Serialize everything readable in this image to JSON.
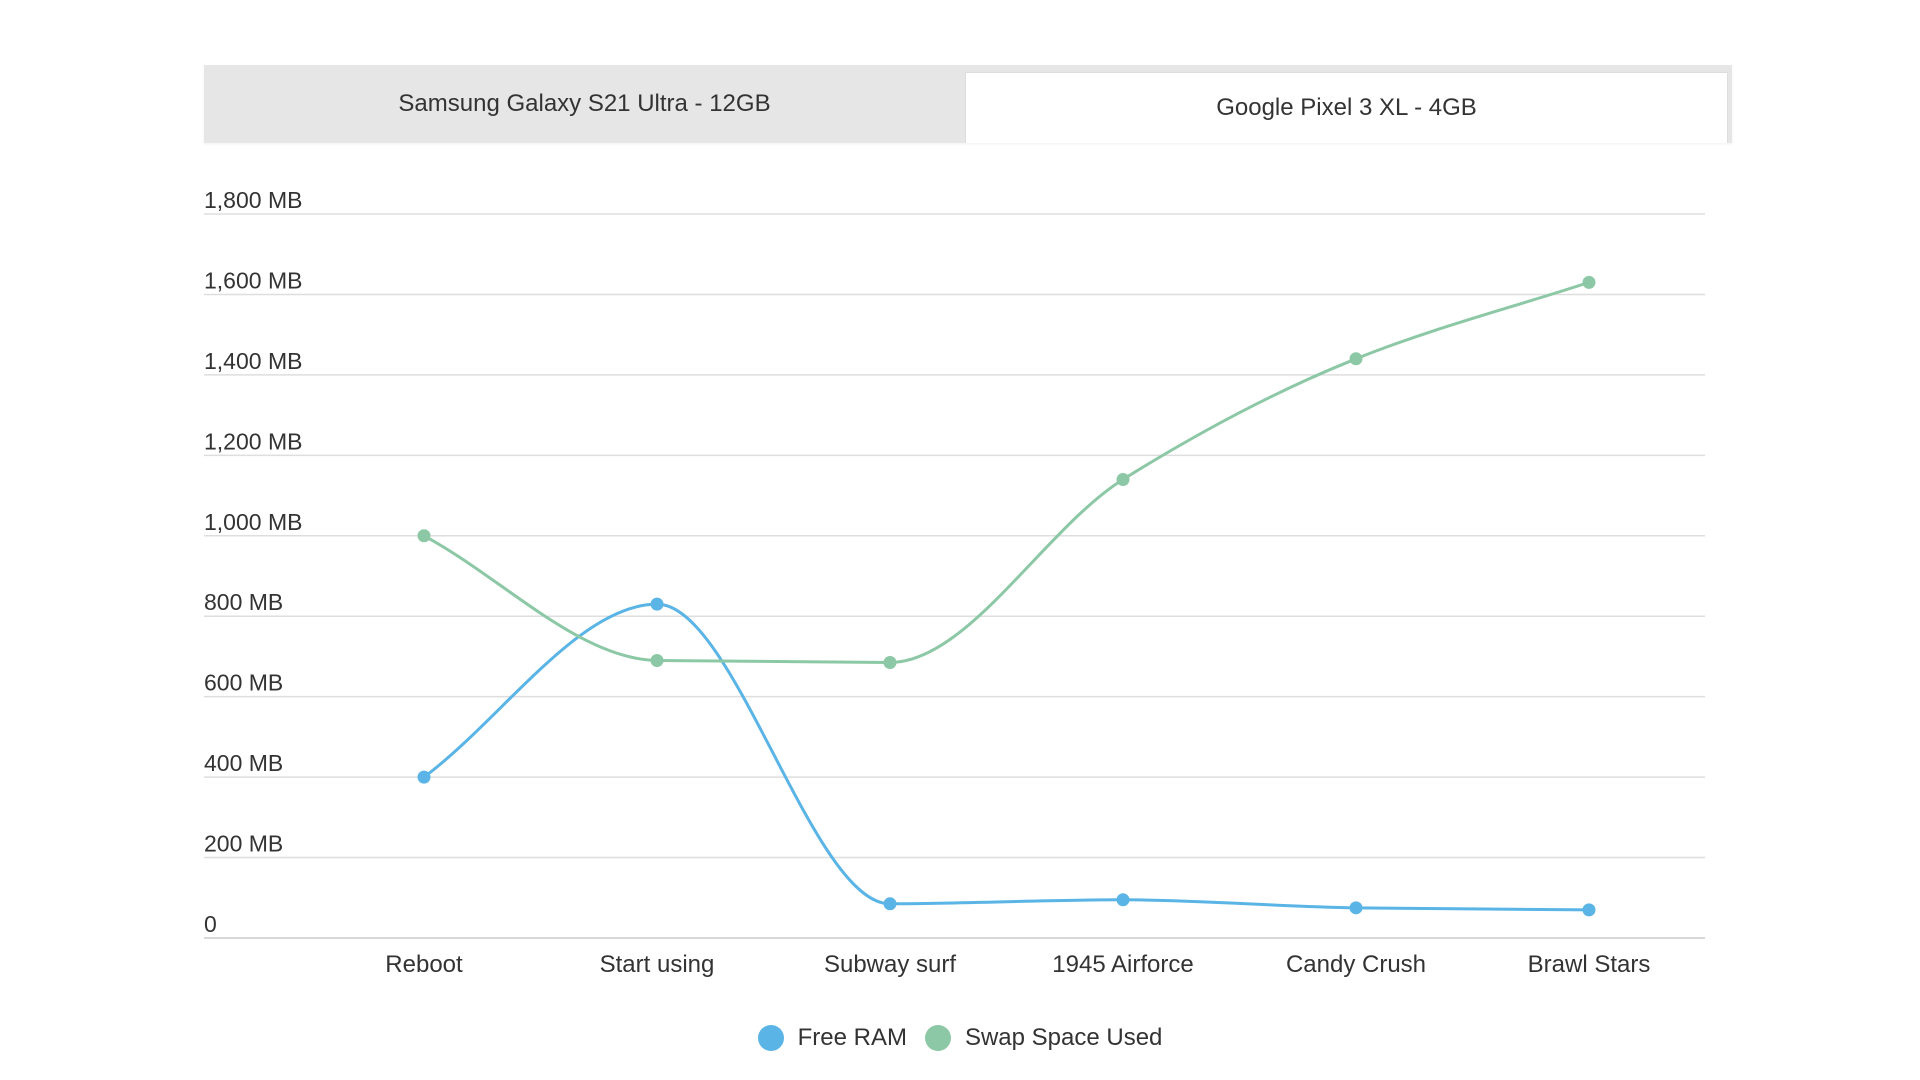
{
  "tabs": [
    {
      "label": "Samsung Galaxy S21 Ultra - 12GB",
      "active": false
    },
    {
      "label": "Google Pixel 3 XL - 4GB",
      "active": true
    }
  ],
  "colors": {
    "free_ram": "#5ab4e6",
    "swap": "#8cc8a5",
    "grid": "#dedede",
    "text": "#333333"
  },
  "chart_data": {
    "type": "line",
    "categories": [
      "Reboot",
      "Start using",
      "Subway surf",
      "1945 Airforce",
      "Candy Crush",
      "Brawl Stars"
    ],
    "series": [
      {
        "name": "Free RAM",
        "values": [
          400,
          830,
          85,
          95,
          75,
          70
        ]
      },
      {
        "name": "Swap Space Used",
        "values": [
          1000,
          690,
          685,
          1140,
          1440,
          1630
        ]
      }
    ],
    "y_ticks": [
      "0",
      "200 MB",
      "400 MB",
      "600 MB",
      "800 MB",
      "1,000 MB",
      "1,200 MB",
      "1,400 MB",
      "1,600 MB",
      "1,800 MB"
    ],
    "ylim": [
      0,
      1800
    ],
    "grid": true,
    "smooth": true,
    "legend_position": "bottom-center"
  }
}
